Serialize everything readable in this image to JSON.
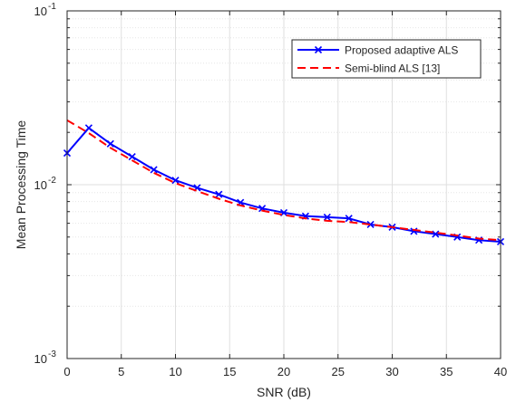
{
  "chart_data": {
    "type": "line",
    "title": "",
    "xlabel": "SNR (dB)",
    "ylabel": "Mean Processing Time",
    "xlim": [
      0,
      40
    ],
    "ylim": [
      0.001,
      0.1
    ],
    "yscale": "log",
    "grid": true,
    "legend_position": "top-right",
    "x_ticks": [
      0,
      5,
      10,
      15,
      20,
      25,
      30,
      35,
      40
    ],
    "x_tick_labels": [
      "0",
      "5",
      "10",
      "15",
      "20",
      "25",
      "30",
      "35",
      "40"
    ],
    "y_ticks": [
      0.001,
      0.01,
      0.1
    ],
    "y_tick_labels": [
      {
        "base": "10",
        "exp": "-3"
      },
      {
        "base": "10",
        "exp": "-2"
      },
      {
        "base": "10",
        "exp": "-1"
      }
    ],
    "series": [
      {
        "name": "Proposed adaptive ALS",
        "color": "#0000FF",
        "line_style": "solid",
        "marker": "x",
        "x": [
          0,
          2,
          4,
          6,
          8,
          10,
          12,
          14,
          16,
          18,
          20,
          22,
          24,
          26,
          28,
          30,
          32,
          34,
          36,
          38,
          40
        ],
        "values": [
          0.0152,
          0.0212,
          0.0172,
          0.0145,
          0.0122,
          0.0106,
          0.0096,
          0.0088,
          0.0079,
          0.0073,
          0.0069,
          0.0066,
          0.0065,
          0.0064,
          0.0059,
          0.0057,
          0.0054,
          0.0052,
          0.005,
          0.0048,
          0.0047
        ]
      },
      {
        "name": "Semi-blind ALS [13]",
        "color": "#FF0000",
        "line_style": "dashed",
        "marker": "none",
        "x": [
          0,
          2,
          4,
          6,
          8,
          10,
          12,
          14,
          16,
          18,
          20,
          22,
          24,
          26,
          28,
          30,
          32,
          34,
          36,
          38,
          40
        ],
        "values": [
          0.0235,
          0.0198,
          0.0163,
          0.0138,
          0.0117,
          0.0102,
          0.0092,
          0.0083,
          0.0076,
          0.0071,
          0.0067,
          0.0064,
          0.0062,
          0.0061,
          0.0059,
          0.0057,
          0.0055,
          0.0053,
          0.0051,
          0.0049,
          0.0048
        ]
      }
    ]
  }
}
